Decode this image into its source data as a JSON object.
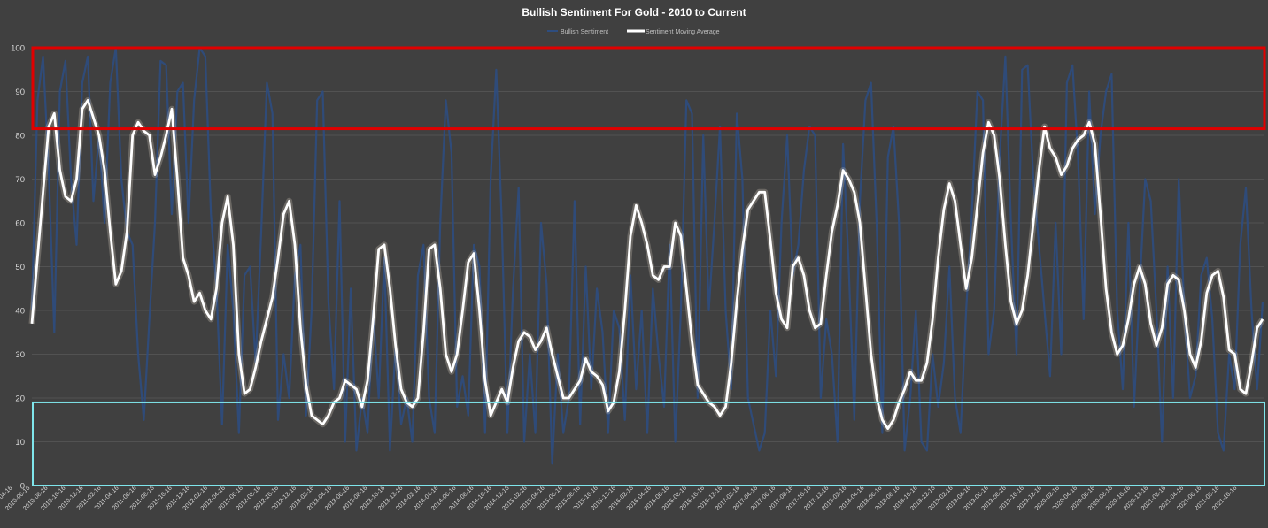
{
  "chart_data": {
    "type": "line",
    "title": "Bullish Sentiment For Gold - 2010 to Current",
    "ylim": [
      0,
      100
    ],
    "yticks": [
      0,
      10,
      20,
      30,
      40,
      50,
      60,
      70,
      80,
      90,
      100
    ],
    "grid": true,
    "legend_position": "top-center",
    "x_tick_labels": [
      "2010-04-16",
      "2010-06-16",
      "2010-08-16",
      "2010-10-16",
      "2010-12-16",
      "2011-02-16",
      "2011-04-16",
      "2011-06-16",
      "2011-08-16",
      "2011-10-16",
      "2011-12-16",
      "2012-02-16",
      "2012-04-16",
      "2012-06-16",
      "2012-08-16",
      "2012-10-16",
      "2012-12-16",
      "2013-02-16",
      "2013-04-16",
      "2013-06-16",
      "2013-08-16",
      "2013-10-16",
      "2013-12-16",
      "2014-02-16",
      "2014-04-16",
      "2014-06-16",
      "2014-08-16",
      "2014-10-16",
      "2014-12-16",
      "2015-02-16",
      "2015-04-16",
      "2015-06-16",
      "2015-08-16",
      "2015-10-16",
      "2015-12-16",
      "2016-02-16",
      "2016-04-16",
      "2016-06-16",
      "2016-08-16",
      "2016-10-16",
      "2016-12-16",
      "2017-02-16",
      "2017-04-16",
      "2017-06-16",
      "2017-08-16",
      "2017-10-16",
      "2017-12-16",
      "2018-02-16",
      "2018-04-16",
      "2018-06-16",
      "2018-08-16",
      "2018-10-16",
      "2018-12-16",
      "2019-02-16",
      "2019-04-16",
      "2019-06-16",
      "2019-08-16",
      "2019-10-16",
      "2019-12-16",
      "2020-02-16",
      "2020-04-16",
      "2020-06-16",
      "2020-08-16",
      "2020-10-16",
      "2020-12-16",
      "2021-02-16",
      "2021-04-16",
      "2021-06-16",
      "2021-08-16",
      "2021-10-16"
    ],
    "series": [
      {
        "name": "Bullish Sentiment",
        "color": "#2e4d7f",
        "values": [
          40,
          88,
          98,
          72,
          35,
          90,
          97,
          70,
          55,
          92,
          98,
          65,
          80,
          60,
          92,
          100,
          70,
          58,
          55,
          30,
          15,
          38,
          60,
          97,
          96,
          62,
          90,
          92,
          60,
          88,
          100,
          98,
          62,
          45,
          14,
          55,
          40,
          12,
          48,
          50,
          28,
          58,
          92,
          85,
          15,
          30,
          20,
          48,
          55,
          16,
          40,
          88,
          90,
          42,
          22,
          65,
          10,
          45,
          8,
          20,
          12,
          40,
          20,
          52,
          8,
          32,
          14,
          20,
          10,
          48,
          55,
          20,
          12,
          60,
          88,
          76,
          18,
          25,
          16,
          55,
          50,
          12,
          70,
          95,
          60,
          12,
          45,
          68,
          10,
          30,
          12,
          60,
          46,
          5,
          30,
          12,
          20,
          65,
          14,
          50,
          22,
          45,
          35,
          12,
          40,
          36,
          15,
          48,
          22,
          40,
          12,
          45,
          30,
          18,
          55,
          10,
          40,
          88,
          85,
          20,
          80,
          40,
          60,
          82,
          40,
          22,
          85,
          70,
          20,
          14,
          8,
          12,
          40,
          25,
          60,
          80,
          48,
          55,
          72,
          82,
          80,
          20,
          38,
          30,
          10,
          78,
          50,
          15,
          65,
          88,
          92,
          60,
          12,
          75,
          82,
          60,
          8,
          20,
          40,
          10,
          8,
          30,
          18,
          28,
          50,
          20,
          12,
          40,
          62,
          90,
          88,
          30,
          40,
          75,
          98,
          60,
          30,
          95,
          96,
          70,
          55,
          40,
          25,
          60,
          30,
          92,
          96,
          75,
          38,
          90,
          62,
          80,
          90,
          94,
          40,
          22,
          60,
          18,
          45,
          70,
          65,
          40,
          10,
          50,
          20,
          70,
          40,
          20,
          25,
          48,
          52,
          38,
          12,
          8,
          30,
          22,
          55,
          68,
          40,
          22,
          42
        ]
      },
      {
        "name": "Sentiment Moving Average",
        "color": "#ffffff",
        "values": [
          37,
          52,
          67,
          82,
          85,
          72,
          66,
          65,
          70,
          86,
          88,
          84,
          80,
          72,
          58,
          46,
          49,
          58,
          80,
          83,
          81,
          80,
          71,
          75,
          80,
          86,
          70,
          52,
          48,
          42,
          44,
          40,
          38,
          45,
          60,
          66,
          55,
          30,
          21,
          22,
          27,
          33,
          38,
          43,
          52,
          62,
          65,
          55,
          36,
          23,
          16,
          15,
          14,
          16,
          19,
          20,
          24,
          23,
          22,
          18,
          24,
          38,
          54,
          55,
          45,
          32,
          22,
          19,
          18,
          20,
          35,
          54,
          55,
          45,
          30,
          26,
          30,
          40,
          51,
          53,
          40,
          24,
          16,
          19,
          22,
          19,
          27,
          33,
          35,
          34,
          31,
          33,
          36,
          30,
          25,
          20,
          20,
          22,
          24,
          29,
          26,
          25,
          23,
          17,
          19,
          26,
          40,
          57,
          64,
          60,
          55,
          48,
          47,
          50,
          50,
          60,
          57,
          45,
          33,
          23,
          21,
          19,
          18,
          16,
          18,
          28,
          42,
          54,
          63,
          65,
          67,
          67,
          56,
          44,
          38,
          36,
          50,
          52,
          48,
          40,
          36,
          37,
          48,
          58,
          64,
          72,
          70,
          67,
          60,
          45,
          30,
          20,
          15,
          13,
          15,
          19,
          22,
          26,
          24,
          24,
          28,
          38,
          52,
          63,
          69,
          65,
          55,
          45,
          52,
          64,
          76,
          83,
          80,
          70,
          55,
          42,
          37,
          40,
          48,
          60,
          72,
          82,
          77,
          75,
          71,
          73,
          77,
          79,
          80,
          83,
          78,
          62,
          45,
          35,
          30,
          32,
          38,
          46,
          50,
          46,
          37,
          32,
          36,
          46,
          48,
          47,
          40,
          30,
          27,
          33,
          44,
          48,
          49,
          43,
          31,
          30,
          22,
          21,
          28,
          36,
          38
        ]
      }
    ],
    "annotations": [
      {
        "type": "rectangle",
        "color": "#e00000",
        "y_from": 81.5,
        "y_to": 100
      },
      {
        "type": "rectangle",
        "color": "#7fe6ec",
        "y_from": 0,
        "y_to": 19
      }
    ]
  }
}
